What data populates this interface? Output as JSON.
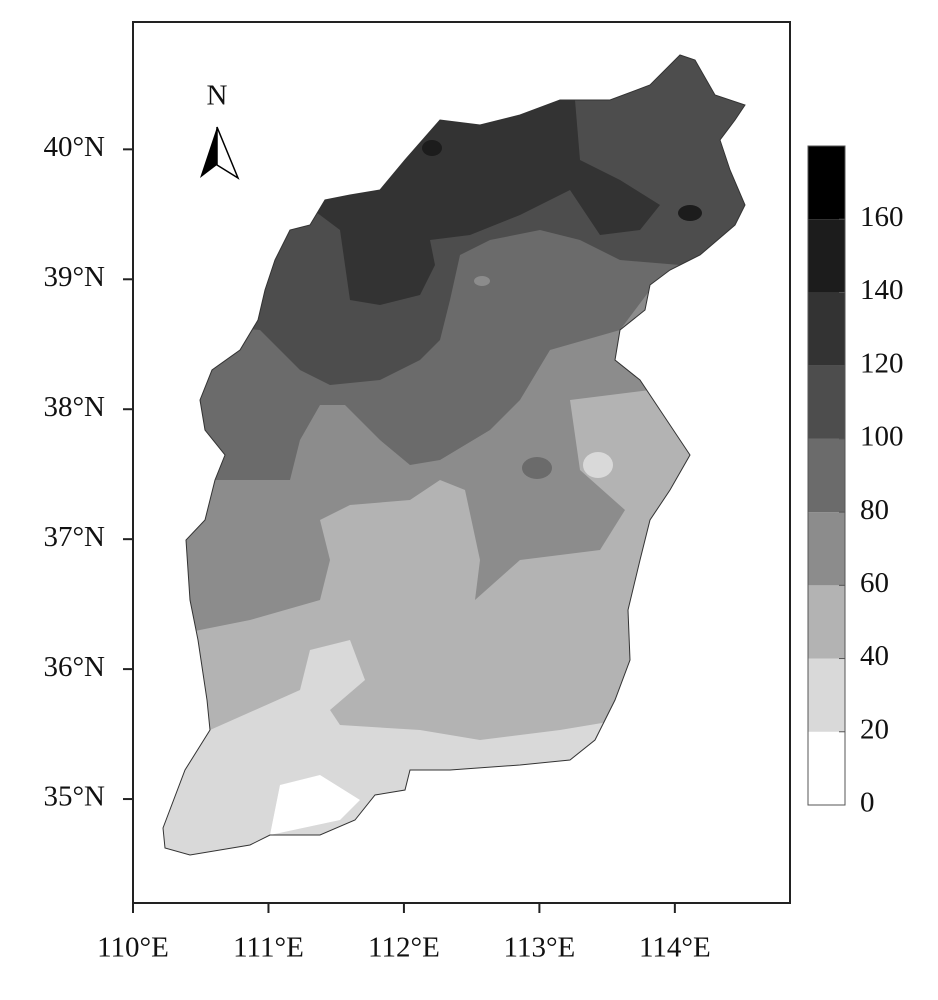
{
  "map": {
    "north_label": "N",
    "xlim": [
      110,
      114.85
    ],
    "ylim": [
      34.2,
      40.98
    ],
    "xticks": [
      {
        "value": 110,
        "label": "110°E"
      },
      {
        "value": 111,
        "label": "111°E"
      },
      {
        "value": 112,
        "label": "112°E"
      },
      {
        "value": 113,
        "label": "113°E"
      },
      {
        "value": 114,
        "label": "114°E"
      }
    ],
    "yticks": [
      {
        "value": 35,
        "label": "35°N"
      },
      {
        "value": 36,
        "label": "36°N"
      },
      {
        "value": 37,
        "label": "37°N"
      },
      {
        "value": 38,
        "label": "38°N"
      },
      {
        "value": 39,
        "label": "39°N"
      },
      {
        "value": 40,
        "label": "40°N"
      }
    ],
    "colorbar": {
      "lim": [
        0,
        180
      ],
      "ticks": [
        0,
        20,
        40,
        60,
        80,
        100,
        120,
        140,
        160
      ],
      "colors": [
        "#ffffff",
        "#d9d9d9",
        "#b3b3b3",
        "#8c8c8c",
        "#6b6b6b",
        "#4d4d4d",
        "#333333",
        "#1c1c1c",
        "#000000"
      ]
    }
  }
}
